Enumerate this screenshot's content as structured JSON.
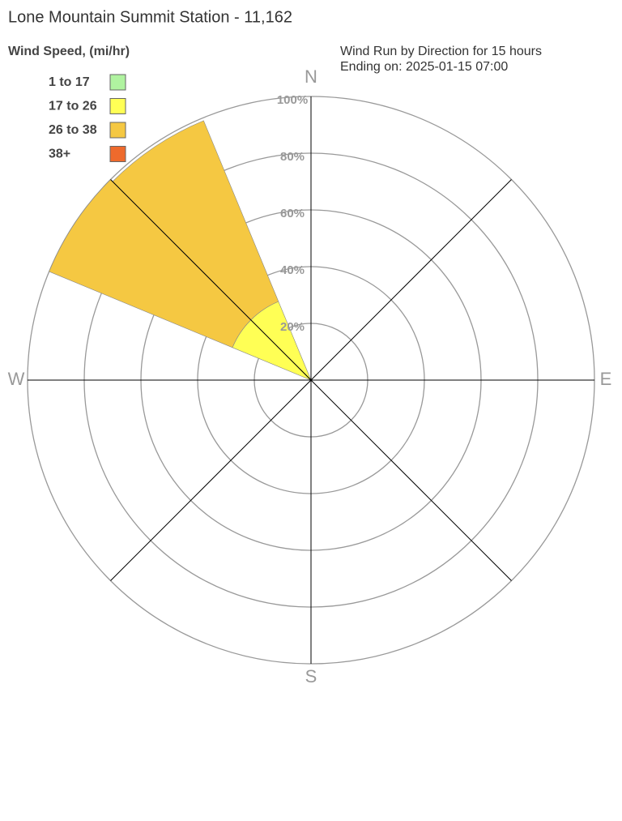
{
  "chart_data": {
    "type": "windrose",
    "title": "Lone Mountain Summit Station - 11,162",
    "legend_title": "Wind Speed, (mi/hr)",
    "subtitle": [
      "Wind Run by Direction for 15 hours",
      "Ending on: 2025-01-15 07:00"
    ],
    "compass": [
      "N",
      "E",
      "S",
      "W"
    ],
    "x": [
      303.75,
      326.25
    ],
    "series": [
      {
        "name": "1 to 17",
        "color": "#b0f3a0",
        "values": [
          0,
          0
        ]
      },
      {
        "name": "17 to 26",
        "color": "#ffff55",
        "values": [
          30,
          30
        ]
      },
      {
        "name": "26 to 38",
        "color": "#f5c842",
        "values": [
          70,
          69
        ]
      },
      {
        "name": "38+",
        "color": "#ee6a2c",
        "values": [
          0,
          0
        ]
      }
    ],
    "rlim": [
      0,
      100
    ],
    "rticks": [
      {
        "value": 20,
        "label": "20%"
      },
      {
        "value": 40,
        "label": "40%"
      },
      {
        "value": 60,
        "label": "60%"
      },
      {
        "value": 80,
        "label": "80%"
      },
      {
        "value": 100,
        "label": "100%"
      }
    ]
  }
}
